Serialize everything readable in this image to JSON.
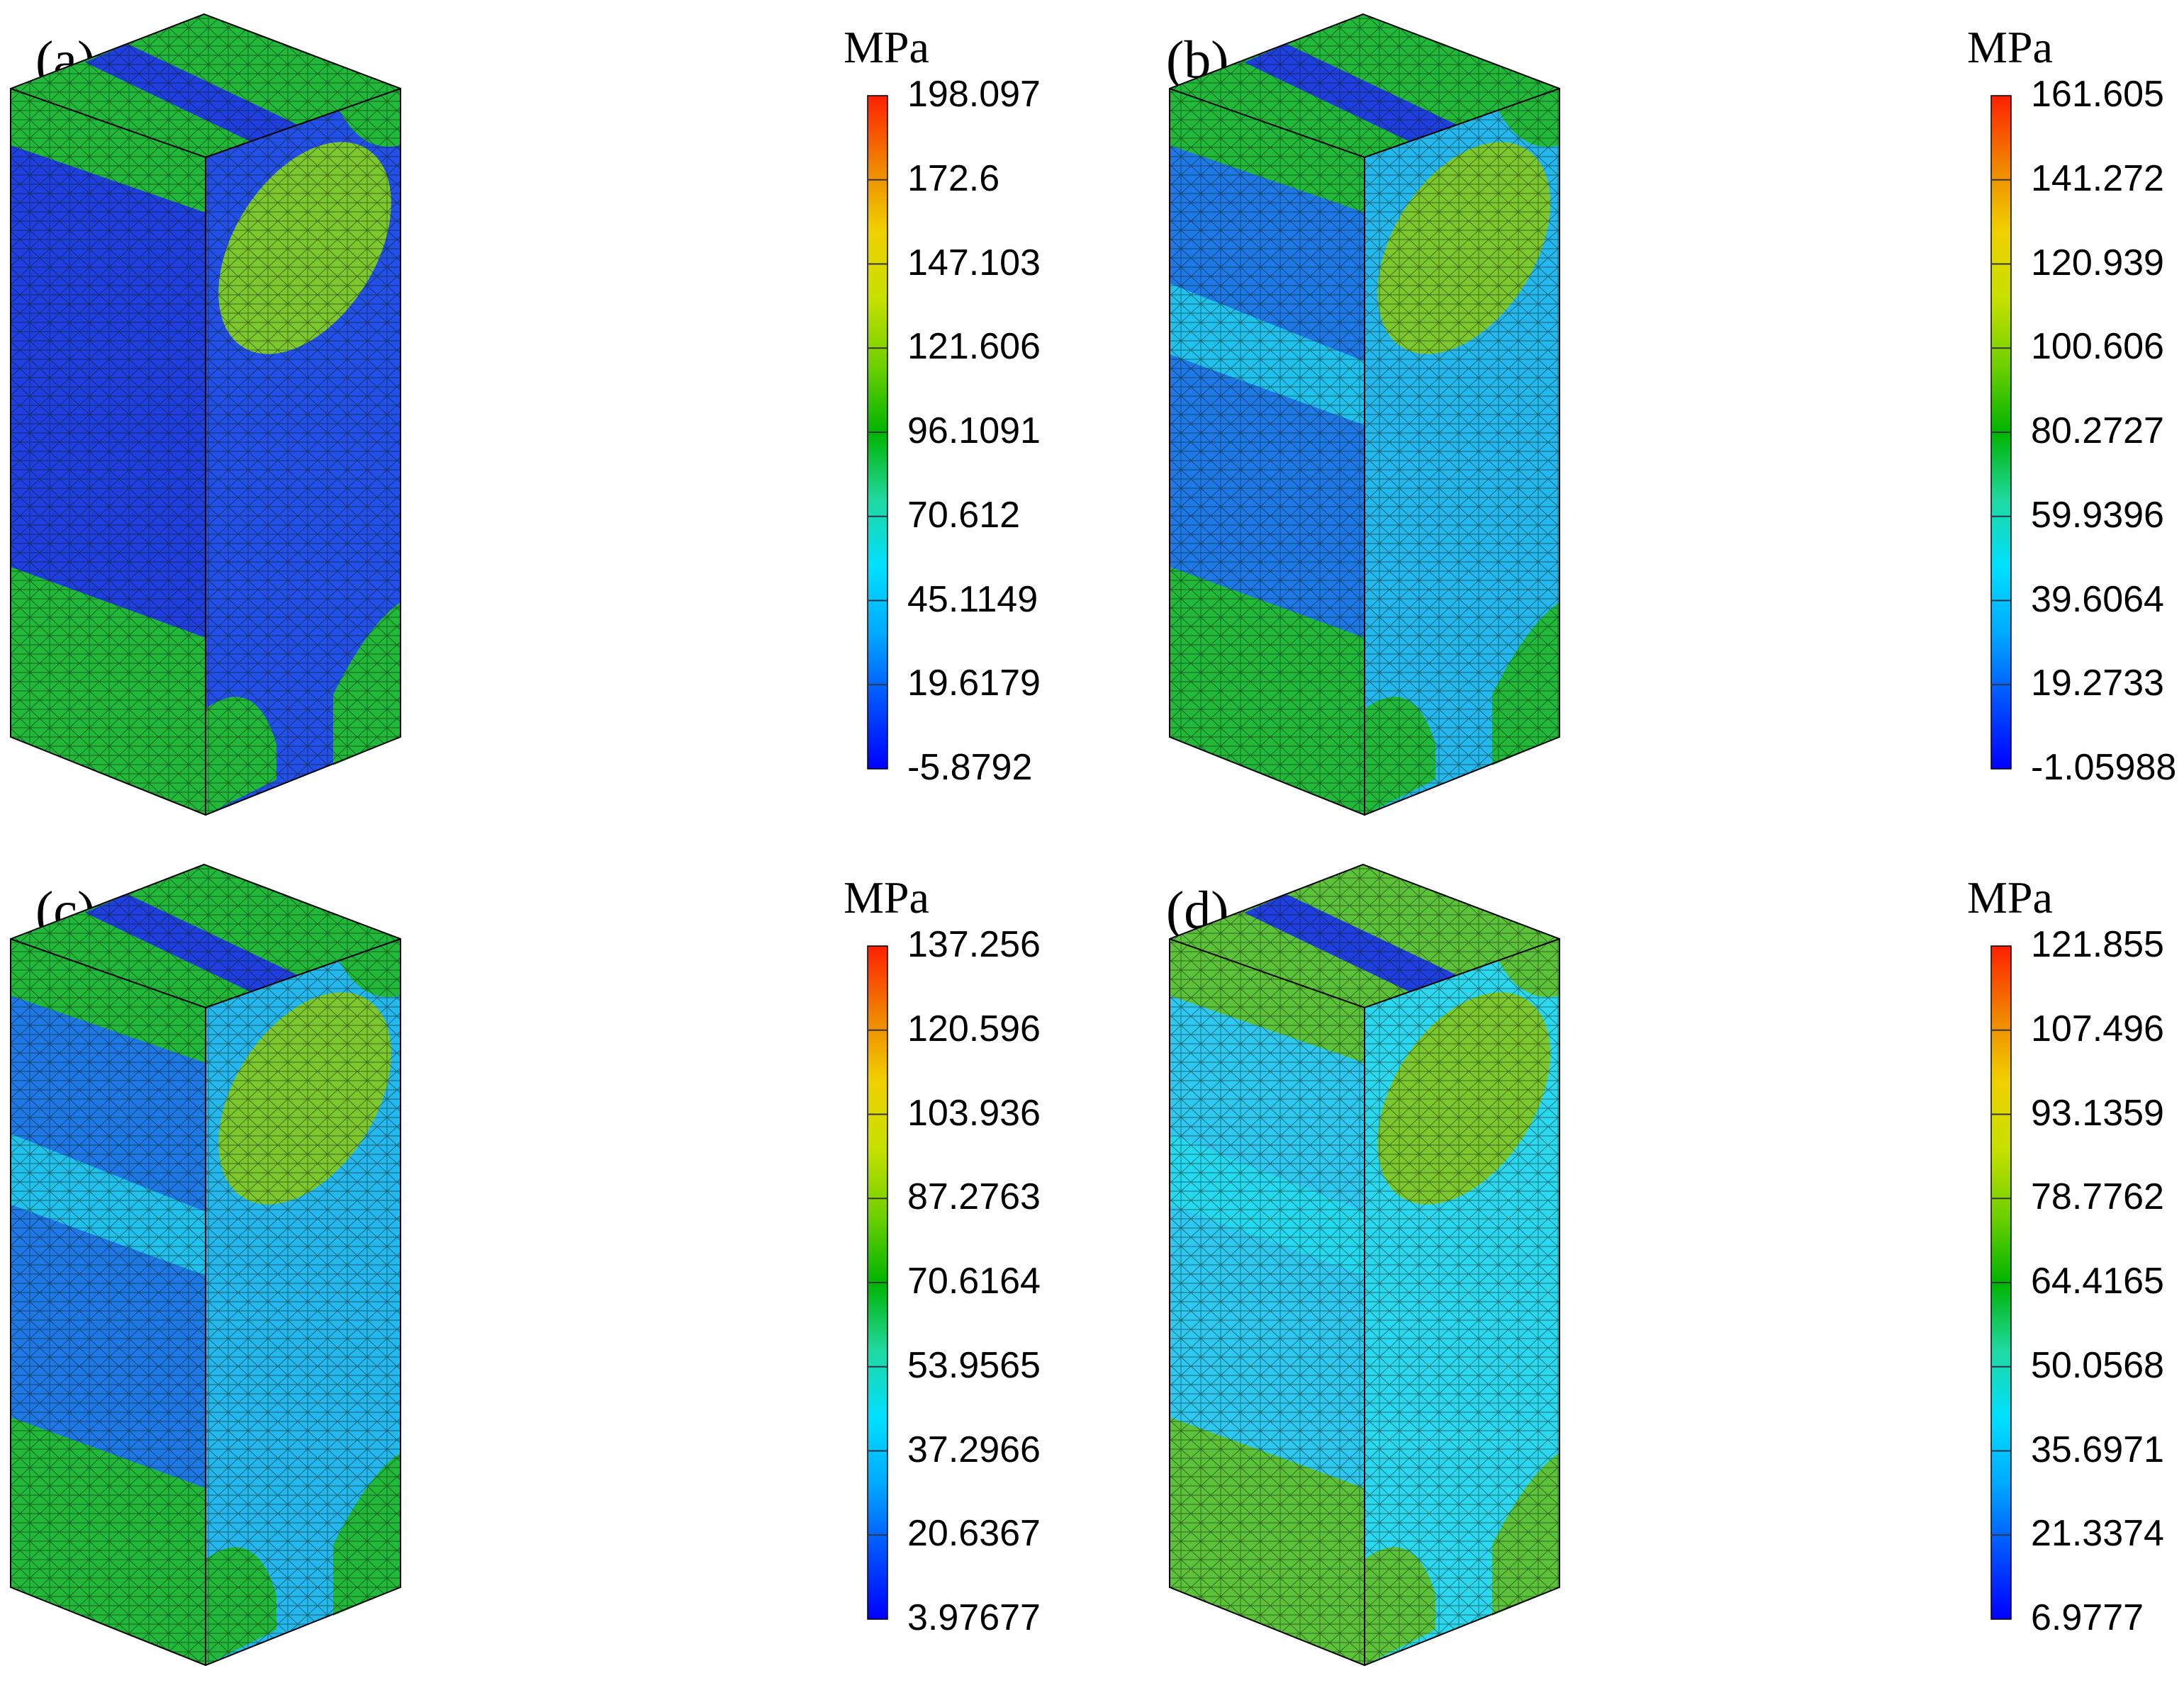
{
  "colors": {
    "matrix_dark_blue": "#1f3fe0",
    "matrix_light_blue": "#27a6ee",
    "cyan": "#22e0f0",
    "green": "#22b83a",
    "yellow_green": "#9ad22e",
    "mesh_line": "#0b1a0b"
  },
  "colormap": [
    "#0000ff",
    "#0050ff",
    "#00a8ff",
    "#00e0ff",
    "#20d8a0",
    "#00b400",
    "#70d000",
    "#c8e000",
    "#f0d000",
    "#f08000",
    "#ff2000"
  ],
  "panels": [
    {
      "label": "(a)",
      "unit": "MPa",
      "ticks": [
        "198.097",
        "172.6",
        "147.103",
        "121.606",
        "96.1091",
        "70.612",
        "45.1149",
        "19.6179",
        "-5.8792"
      ],
      "matrix": "dark"
    },
    {
      "label": "(b)",
      "unit": "MPa",
      "ticks": [
        "161.605",
        "141.272",
        "120.939",
        "100.606",
        "80.2727",
        "59.9396",
        "39.6064",
        "19.2733",
        "-1.05988"
      ],
      "matrix": "mixed"
    },
    {
      "label": "(c)",
      "unit": "MPa",
      "ticks": [
        "137.256",
        "120.596",
        "103.936",
        "87.2763",
        "70.6164",
        "53.9565",
        "37.2966",
        "20.6367",
        "3.97677"
      ],
      "matrix": "mixed"
    },
    {
      "label": "(d)",
      "unit": "MPa",
      "ticks": [
        "121.855",
        "107.496",
        "93.1359",
        "78.7762",
        "64.4165",
        "50.0568",
        "35.6971",
        "21.3374",
        "6.9777"
      ],
      "matrix": "light"
    }
  ]
}
